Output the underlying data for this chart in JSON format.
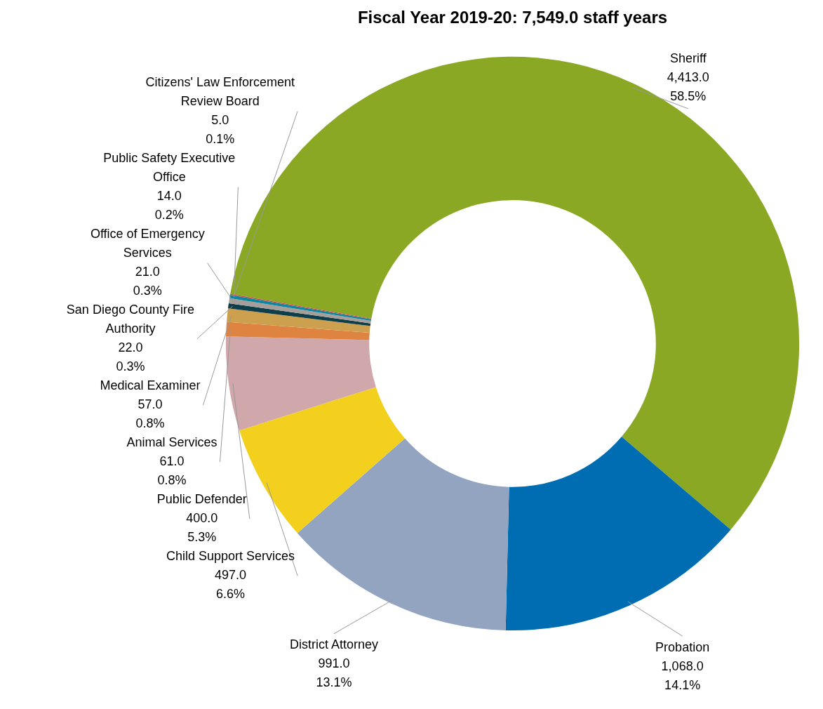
{
  "chart_data": {
    "type": "donut",
    "title": "Fiscal Year 2019-20: 7,549.0 staff years",
    "categories": [
      "Sheriff",
      "Probation",
      "District Attorney",
      "Child Support Services",
      "Public Defender",
      "Animal Services",
      "Medical Examiner",
      "San Diego County Fire Authority",
      "Office of Emergency Services",
      "Public Safety Executive Office",
      "Citizens' Law Enforcement Review Board"
    ],
    "values": [
      4413.0,
      1068.0,
      991.0,
      497.0,
      400.0,
      61.0,
      57.0,
      22.0,
      21.0,
      14.0,
      5.0
    ],
    "colors": [
      "#8aa823",
      "#006db3",
      "#93a4c1",
      "#f2d01d",
      "#d0a7aa",
      "#df8440",
      "#cda04f",
      "#0e3e4a",
      "#a59e9a",
      "#0f86a0",
      "#c0504d"
    ],
    "value_labels": [
      "4,413.0\n58.5%",
      "1,068.0\n14.1%",
      "991.0\n13.1%",
      "497.0\n6.6%",
      "400.0\n5.3%",
      "61.0\n0.8%",
      "57.0\n0.8%",
      "22.0\n0.3%",
      "21.0\n0.3%",
      "14.0\n0.2%",
      "5.0\n0.1%"
    ],
    "legend": false
  }
}
